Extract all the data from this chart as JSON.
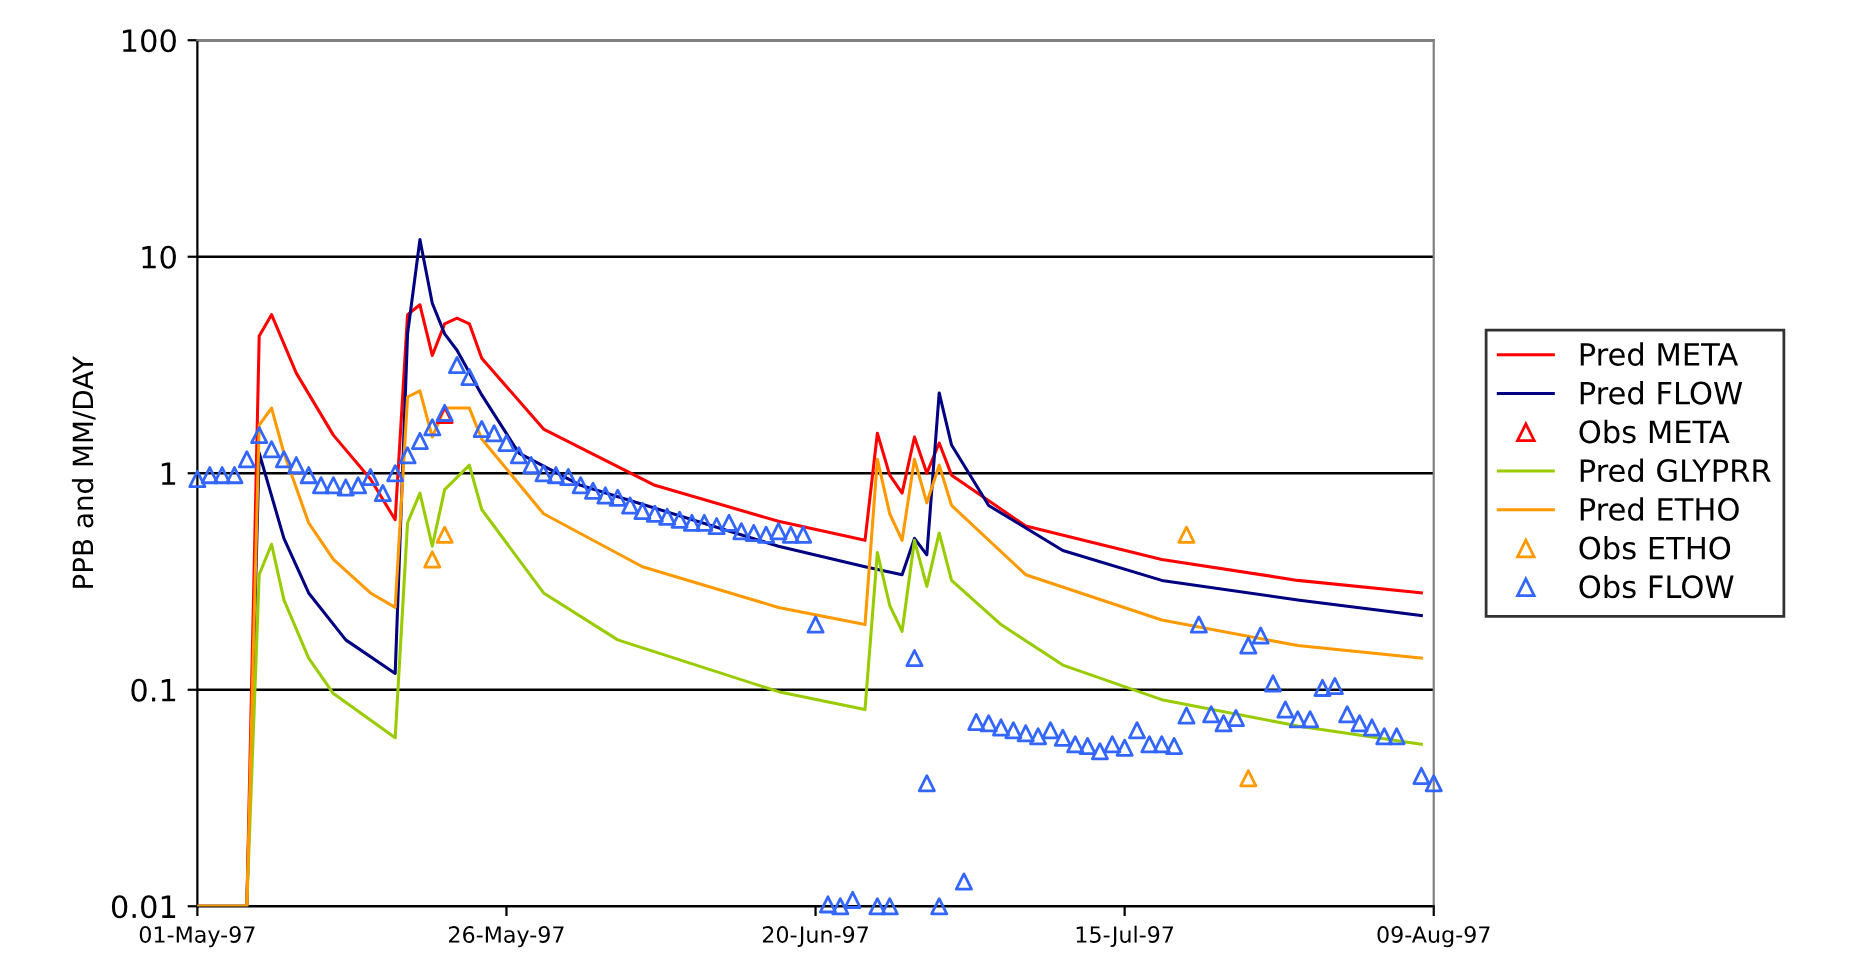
{
  "chart_data": {
    "type": "line",
    "ylabel": "PPB and MM/DAY",
    "log": "y",
    "grid": "y",
    "legend": "right",
    "xlim": [
      "1997-05-01",
      "1997-08-09"
    ],
    "xticks": [
      {
        "value": "1997-05-01",
        "label": "01-May-97"
      },
      {
        "value": "1997-05-26",
        "label": "26-May-97"
      },
      {
        "value": "1997-06-20",
        "label": "20-Jun-97"
      },
      {
        "value": "1997-07-15",
        "label": "15-Jul-97"
      },
      {
        "value": "1997-08-09",
        "label": "09-Aug-97"
      }
    ],
    "ylim": [
      0.01,
      100
    ],
    "yticks": [
      0.01,
      0.1,
      1,
      10,
      100
    ],
    "series": [
      {
        "name": "Pred META",
        "color": "#ff0000",
        "marker": "none",
        "line_style": "solid",
        "x": [
          "1997-05-01",
          "1997-05-05",
          "1997-05-06",
          "1997-05-07",
          "1997-05-09",
          "1997-05-12",
          "1997-05-15",
          "1997-05-17",
          "1997-05-18",
          "1997-05-19",
          "1997-05-20",
          "1997-05-21",
          "1997-05-22",
          "1997-05-23",
          "1997-05-24",
          "1997-05-29",
          "1997-06-07",
          "1997-06-17",
          "1997-06-24",
          "1997-06-25",
          "1997-06-26",
          "1997-06-27",
          "1997-06-28",
          "1997-06-29",
          "1997-06-30",
          "1997-07-01",
          "1997-07-07",
          "1997-07-18",
          "1997-07-29",
          "1997-08-08"
        ],
        "values": [
          0.01,
          0.01,
          4.3,
          5.4,
          2.9,
          1.5,
          0.94,
          0.61,
          5.4,
          6.0,
          3.5,
          4.9,
          5.2,
          4.9,
          3.4,
          1.6,
          0.88,
          0.6,
          0.49,
          1.53,
          0.98,
          0.81,
          1.47,
          1.0,
          1.38,
          0.98,
          0.57,
          0.4,
          0.32,
          0.28
        ]
      },
      {
        "name": "Pred FLOW",
        "color": "#000080",
        "marker": "none",
        "line_style": "solid",
        "x": [
          "1997-05-01",
          "1997-05-05",
          "1997-05-06",
          "1997-05-08",
          "1997-05-10",
          "1997-05-13",
          "1997-05-17",
          "1997-05-18",
          "1997-05-19",
          "1997-05-20",
          "1997-05-21",
          "1997-05-22",
          "1997-05-24",
          "1997-05-27",
          "1997-06-01",
          "1997-06-17",
          "1997-06-24",
          "1997-06-27",
          "1997-06-28",
          "1997-06-29",
          "1997-06-30",
          "1997-07-01",
          "1997-07-04",
          "1997-07-10",
          "1997-07-18",
          "1997-07-29",
          "1997-08-08"
        ],
        "values": [
          0.01,
          0.01,
          1.24,
          0.5,
          0.28,
          0.17,
          0.119,
          4.4,
          12,
          6.1,
          4.4,
          3.7,
          2.3,
          1.24,
          0.88,
          0.46,
          0.37,
          0.34,
          0.5,
          0.42,
          2.35,
          1.35,
          0.71,
          0.44,
          0.32,
          0.26,
          0.22
        ]
      },
      {
        "name": "Obs META",
        "type": "scatter",
        "color": "#ff0000",
        "marker": "triangle",
        "x": [
          "1997-05-21"
        ],
        "values": [
          1.86
        ]
      },
      {
        "name": "Pred GLYPRR",
        "color": "#99cc00",
        "marker": "none",
        "line_style": "solid",
        "x": [
          "1997-05-01",
          "1997-05-05",
          "1997-05-06",
          "1997-05-07",
          "1997-05-08",
          "1997-05-10",
          "1997-05-12",
          "1997-05-17",
          "1997-05-18",
          "1997-05-19",
          "1997-05-20",
          "1997-05-21",
          "1997-05-23",
          "1997-05-24",
          "1997-05-29",
          "1997-06-04",
          "1997-06-17",
          "1997-06-24",
          "1997-06-25",
          "1997-06-26",
          "1997-06-27",
          "1997-06-28",
          "1997-06-29",
          "1997-06-30",
          "1997-07-01",
          "1997-07-05",
          "1997-07-10",
          "1997-07-18",
          "1997-07-29",
          "1997-08-08"
        ],
        "values": [
          0.01,
          0.01,
          0.34,
          0.47,
          0.26,
          0.14,
          0.096,
          0.06,
          0.59,
          0.81,
          0.46,
          0.84,
          1.09,
          0.68,
          0.28,
          0.17,
          0.098,
          0.081,
          0.43,
          0.245,
          0.186,
          0.49,
          0.3,
          0.53,
          0.32,
          0.2,
          0.13,
          0.09,
          0.068,
          0.056
        ]
      },
      {
        "name": "Pred ETHO",
        "color": "#ff9900",
        "marker": "none",
        "line_style": "solid",
        "x": [
          "1997-05-01",
          "1997-05-05",
          "1997-05-06",
          "1997-05-07",
          "1997-05-08",
          "1997-05-10",
          "1997-05-12",
          "1997-05-15",
          "1997-05-17",
          "1997-05-18",
          "1997-05-19",
          "1997-05-20",
          "1997-05-21",
          "1997-05-23",
          "1997-05-24",
          "1997-05-29",
          "1997-06-06",
          "1997-06-17",
          "1997-06-24",
          "1997-06-25",
          "1997-06-26",
          "1997-06-27",
          "1997-06-28",
          "1997-06-29",
          "1997-06-30",
          "1997-07-01",
          "1997-07-07",
          "1997-07-18",
          "1997-07-29",
          "1997-08-08"
        ],
        "values": [
          0.01,
          0.01,
          1.67,
          2.0,
          1.24,
          0.59,
          0.4,
          0.28,
          0.24,
          2.25,
          2.4,
          1.47,
          2.0,
          2.0,
          1.44,
          0.65,
          0.37,
          0.24,
          0.2,
          1.16,
          0.65,
          0.49,
          1.16,
          0.73,
          1.09,
          0.71,
          0.34,
          0.21,
          0.16,
          0.14
        ]
      },
      {
        "name": "Obs ETHO",
        "type": "scatter",
        "color": "#ff9900",
        "marker": "triangle",
        "x": [
          "1997-05-20",
          "1997-05-21",
          "1997-07-20",
          "1997-07-25"
        ],
        "values": [
          0.4,
          0.52,
          0.52,
          0.039
        ]
      },
      {
        "name": "Obs FLOW",
        "type": "scatter",
        "color": "#3366ff",
        "marker": "triangle",
        "x": [
          "1997-05-01",
          "1997-05-02",
          "1997-05-03",
          "1997-05-04",
          "1997-05-05",
          "1997-05-06",
          "1997-05-07",
          "1997-05-08",
          "1997-05-09",
          "1997-05-10",
          "1997-05-11",
          "1997-05-12",
          "1997-05-13",
          "1997-05-14",
          "1997-05-15",
          "1997-05-16",
          "1997-05-17",
          "1997-05-18",
          "1997-05-19",
          "1997-05-20",
          "1997-05-21",
          "1997-05-22",
          "1997-05-23",
          "1997-05-24",
          "1997-05-25",
          "1997-05-26",
          "1997-05-27",
          "1997-05-28",
          "1997-05-29",
          "1997-05-30",
          "1997-05-31",
          "1997-06-01",
          "1997-06-02",
          "1997-06-03",
          "1997-06-04",
          "1997-06-05",
          "1997-06-06",
          "1997-06-07",
          "1997-06-08",
          "1997-06-09",
          "1997-06-10",
          "1997-06-11",
          "1997-06-12",
          "1997-06-13",
          "1997-06-14",
          "1997-06-15",
          "1997-06-16",
          "1997-06-17",
          "1997-06-18",
          "1997-06-19",
          "1997-06-20",
          "1997-06-21",
          "1997-06-22",
          "1997-06-23",
          "1997-06-25",
          "1997-06-26",
          "1997-06-28",
          "1997-06-29",
          "1997-06-30",
          "1997-07-02",
          "1997-07-03",
          "1997-07-04",
          "1997-07-05",
          "1997-07-06",
          "1997-07-07",
          "1997-07-08",
          "1997-07-09",
          "1997-07-10",
          "1997-07-11",
          "1997-07-12",
          "1997-07-13",
          "1997-07-14",
          "1997-07-15",
          "1997-07-16",
          "1997-07-17",
          "1997-07-18",
          "1997-07-19",
          "1997-07-20",
          "1997-07-21",
          "1997-07-22",
          "1997-07-23",
          "1997-07-24",
          "1997-07-25",
          "1997-07-26",
          "1997-07-27",
          "1997-07-28",
          "1997-07-29",
          "1997-07-30",
          "1997-07-31",
          "1997-08-01",
          "1997-08-02",
          "1997-08-03",
          "1997-08-04",
          "1997-08-05",
          "1997-08-06",
          "1997-08-08",
          "1997-08-09"
        ],
        "values": [
          0.94,
          0.98,
          0.98,
          0.98,
          1.16,
          1.5,
          1.29,
          1.16,
          1.09,
          0.98,
          0.88,
          0.88,
          0.86,
          0.88,
          0.96,
          0.81,
          1.0,
          1.21,
          1.41,
          1.63,
          1.9,
          3.16,
          2.78,
          1.6,
          1.53,
          1.38,
          1.21,
          1.09,
          1.0,
          0.98,
          0.96,
          0.88,
          0.83,
          0.79,
          0.77,
          0.71,
          0.67,
          0.65,
          0.63,
          0.61,
          0.59,
          0.59,
          0.57,
          0.59,
          0.54,
          0.53,
          0.52,
          0.54,
          0.52,
          0.52,
          0.2,
          0.0102,
          0.01,
          0.0107,
          0.01,
          0.01,
          0.14,
          0.037,
          0.01,
          0.013,
          0.071,
          0.07,
          0.067,
          0.065,
          0.063,
          0.061,
          0.065,
          0.06,
          0.056,
          0.055,
          0.052,
          0.056,
          0.054,
          0.065,
          0.056,
          0.056,
          0.055,
          0.076,
          0.2,
          0.077,
          0.07,
          0.074,
          0.16,
          0.178,
          0.107,
          0.081,
          0.073,
          0.073,
          0.102,
          0.104,
          0.077,
          0.07,
          0.067,
          0.061,
          0.061,
          0.04,
          0.037
        ]
      }
    ]
  }
}
